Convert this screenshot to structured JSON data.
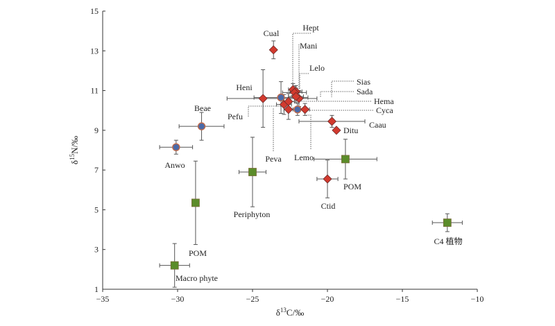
{
  "chart_data": {
    "type": "scatter",
    "title": "",
    "xlabel": "δ13C/‰",
    "ylabel": "δ15N/‰",
    "xlim": [
      -35,
      -10
    ],
    "ylim": [
      1,
      15
    ],
    "xticks": [
      -35,
      -30,
      -25,
      -20,
      -15,
      -10
    ],
    "yticks": [
      1,
      3,
      5,
      7,
      9,
      11,
      13,
      15
    ],
    "grid": false,
    "legend": "none",
    "colors": {
      "diamond": "#d23a2e",
      "circle": "#4a6aa8",
      "square": "#5b8c2a",
      "marker_edge": "#6b2b2b",
      "error_bar": "#555555",
      "leader": "#333333"
    },
    "points": [
      {
        "label": "Cual",
        "marker": "diamond",
        "x": -23.6,
        "y": 13.05,
        "xerr": 0,
        "yerr": 0.45
      },
      {
        "label": "Hept",
        "marker": "diamond",
        "x": -22.3,
        "y": 11.05,
        "xerr": 0.3,
        "yerr": 0.3
      },
      {
        "label": "Mani",
        "marker": "diamond",
        "x": -22.1,
        "y": 10.95,
        "xerr": 0.4,
        "yerr": 0.3
      },
      {
        "label": "Lelo",
        "marker": "diamond",
        "x": -22.2,
        "y": 10.9,
        "xerr": 0.8,
        "yerr": 0.3
      },
      {
        "label": "Sias",
        "marker": "diamond",
        "x": -21.9,
        "y": 10.6,
        "xerr": 1.2,
        "yerr": 0.4
      },
      {
        "label": "Sada",
        "marker": "diamond",
        "x": -22.1,
        "y": 10.7,
        "xerr": 0.5,
        "yerr": 0.3
      },
      {
        "label": "Hema",
        "marker": "circle",
        "x": -23.1,
        "y": 10.65,
        "xerr": 1.8,
        "yerr": 0.8
      },
      {
        "label": "Cyca",
        "marker": "circle",
        "x": -22.0,
        "y": 10.05,
        "xerr": 0.5,
        "yerr": 0.3
      },
      {
        "label": "Heni",
        "marker": "diamond",
        "x": -24.3,
        "y": 10.6,
        "xerr": 2.4,
        "yerr": 1.45
      },
      {
        "label": "Pefu",
        "marker": "diamond",
        "x": -22.9,
        "y": 10.3,
        "xerr": 0.5,
        "yerr": 0.5
      },
      {
        "label": "Peva",
        "marker": "diamond",
        "x": -22.6,
        "y": 10.05,
        "xerr": 0.3,
        "yerr": 0.5
      },
      {
        "label": "Lemo",
        "marker": "diamond",
        "x": -21.5,
        "y": 10.05,
        "xerr": 0.3,
        "yerr": 0.3
      },
      {
        "label": "",
        "marker": "diamond",
        "x": -22.6,
        "y": 10.45,
        "xerr": 0.4,
        "yerr": 0.4
      },
      {
        "label": "Caau",
        "marker": "diamond",
        "x": -19.7,
        "y": 9.45,
        "xerr": 2.2,
        "yerr": 0.3
      },
      {
        "label": "Ditu",
        "marker": "diamond",
        "x": -19.4,
        "y": 9.0,
        "xerr": 0,
        "yerr": 0
      },
      {
        "label": "Beae",
        "marker": "circle",
        "x": -28.4,
        "y": 9.2,
        "xerr": 1.5,
        "yerr": 0.7
      },
      {
        "label": "Anwo",
        "marker": "circle",
        "x": -30.1,
        "y": 8.15,
        "xerr": 1.1,
        "yerr": 0.35
      },
      {
        "label": "POM",
        "marker": "square",
        "x": -18.8,
        "y": 7.55,
        "xerr": 2.1,
        "yerr": 1.0
      },
      {
        "label": "Periphyton",
        "marker": "square",
        "x": -25.0,
        "y": 6.9,
        "xerr": 0.9,
        "yerr": 1.75
      },
      {
        "label": "Ctid",
        "marker": "diamond",
        "x": -20.0,
        "y": 6.55,
        "xerr": 0.7,
        "yerr": 0.95
      },
      {
        "label": "POM",
        "marker": "square",
        "x": -28.8,
        "y": 5.35,
        "xerr": 0,
        "yerr": 2.1
      },
      {
        "label": "Macro phyte",
        "marker": "square",
        "x": -30.2,
        "y": 2.2,
        "xerr": 1.0,
        "yerr": 1.1
      },
      {
        "label": "C4 植物",
        "marker": "square",
        "x": -12.0,
        "y": 4.35,
        "xerr": 1.0,
        "yerr": 0.45
      }
    ]
  }
}
